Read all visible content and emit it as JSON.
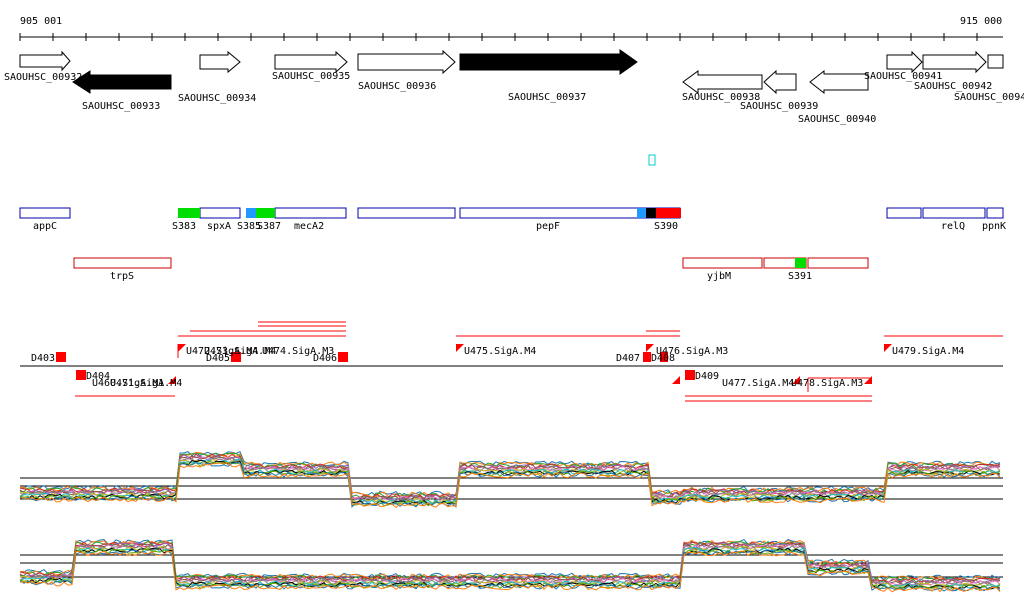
{
  "ruler": {
    "start_label": "905 001",
    "end_label": "915 000"
  },
  "genes": [
    {
      "label": "SAOUHSC_00932",
      "strand": "+",
      "fill": "#ffffff"
    },
    {
      "label": "SAOUHSC_00933",
      "strand": "-",
      "fill": "#000000"
    },
    {
      "label": "SAOUHSC_00934",
      "strand": "+",
      "fill": "#ffffff"
    },
    {
      "label": "SAOUHSC_00935",
      "strand": "+",
      "fill": "#ffffff"
    },
    {
      "label": "SAOUHSC_00936",
      "strand": "+",
      "fill": "#ffffff"
    },
    {
      "label": "SAOUHSC_00937",
      "strand": "+",
      "fill": "#000000"
    },
    {
      "label": "SAOUHSC_00938",
      "strand": "-",
      "fill": "#ffffff"
    },
    {
      "label": "SAOUHSC_00939",
      "strand": "-",
      "fill": "#ffffff"
    },
    {
      "label": "SAOUHSC_00940",
      "strand": "-",
      "fill": "#ffffff"
    },
    {
      "label": "SAOUHSC_00941",
      "strand": "+",
      "fill": "#ffffff"
    },
    {
      "label": "SAOUHSC_00942",
      "strand": "+",
      "fill": "#ffffff"
    },
    {
      "label": "SAOUHSC_0094",
      "strand": "+",
      "fill": "#ffffff"
    }
  ],
  "operons_plus": [
    {
      "label": "appC"
    },
    {
      "label": "spxA"
    },
    {
      "label": "mecA2"
    },
    {
      "label": ""
    },
    {
      "label": "pepF"
    },
    {
      "label": "relQ"
    },
    {
      "label": "ppnK"
    }
  ],
  "operons_minus": [
    {
      "label": "trpS"
    },
    {
      "label": "yjbM"
    },
    {
      "label": ""
    }
  ],
  "segments": [
    {
      "label": "S383",
      "color": "#00dd00"
    },
    {
      "label": "S385",
      "color": "#2299ff"
    },
    {
      "label": "S387",
      "color": "#00dd00"
    },
    {
      "label": "S390",
      "color": "#ff0000"
    },
    {
      "label": "S391",
      "color": "#00dd00"
    }
  ],
  "tss": [
    {
      "label": "U475.SigA.M4"
    },
    {
      "label": "U476.SigA.M3"
    },
    {
      "label": "U477.SigA.M4"
    },
    {
      "label": "U478.SigA.M3"
    },
    {
      "label": "U479.SigA.M4"
    }
  ],
  "overlap_labels": [
    {
      "label": "U460.SigA.M1"
    },
    {
      "label": "U471.SigA.M4"
    },
    {
      "label": "U472.SigA.M4"
    },
    {
      "label": "U473.SigA.M4"
    },
    {
      "label": "U474.SigA.M3"
    }
  ],
  "downs": [
    {
      "label": "D403"
    },
    {
      "label": "D404"
    },
    {
      "label": "D405"
    },
    {
      "label": "D406"
    },
    {
      "label": "D407"
    },
    {
      "label": "D408"
    },
    {
      "label": "D409"
    }
  ],
  "colors": {
    "strand_marker": "#ff0000",
    "operon_plus": "#0000aa",
    "operon_minus": "#cc0000",
    "misc": "#00cccc"
  }
}
